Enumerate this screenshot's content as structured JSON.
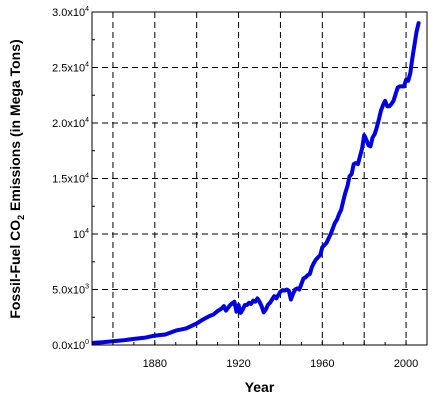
{
  "chart_data": {
    "type": "line",
    "title": "",
    "xlabel": "Year",
    "ylabel": {
      "before": "Fossil-Fuel CO",
      "subscript": "2",
      "after": " Emissions (in Mega Tons)"
    },
    "xlim": [
      1850,
      2010
    ],
    "ylim": [
      0,
      30000
    ],
    "x_ticks": [
      {
        "value": 1880,
        "label": "1880"
      },
      {
        "value": 1920,
        "label": "1920"
      },
      {
        "value": 1960,
        "label": "1960"
      },
      {
        "value": 2000,
        "label": "2000"
      }
    ],
    "y_ticks": [
      {
        "value": 0,
        "mantissa": "0.0x10",
        "exp": "0"
      },
      {
        "value": 5000,
        "mantissa": "5.0x10",
        "exp": "3"
      },
      {
        "value": 10000,
        "mantissa": "10",
        "exp": "4"
      },
      {
        "value": 15000,
        "mantissa": "1.5x10",
        "exp": "4"
      },
      {
        "value": 20000,
        "mantissa": "2.0x10",
        "exp": "4"
      },
      {
        "value": 25000,
        "mantissa": "2.5x10",
        "exp": "4"
      },
      {
        "value": 30000,
        "mantissa": "3.0x10",
        "exp": "4"
      }
    ],
    "grid": true,
    "series": [
      {
        "color": "#0000e6",
        "x": [
          1851,
          1855,
          1860,
          1865,
          1870,
          1875,
          1880,
          1885,
          1890,
          1895,
          1900,
          1903,
          1906,
          1908,
          1910,
          1912,
          1913,
          1914,
          1916,
          1918,
          1919,
          1920,
          1921,
          1922,
          1923,
          1924,
          1925,
          1926,
          1927,
          1928,
          1929,
          1930,
          1931,
          1932,
          1933,
          1934,
          1935,
          1936,
          1937,
          1938,
          1939,
          1940,
          1941,
          1942,
          1943,
          1944,
          1945,
          1946,
          1947,
          1948,
          1949,
          1950,
          1951,
          1952,
          1953,
          1954,
          1955,
          1956,
          1957,
          1958,
          1959,
          1960,
          1961,
          1962,
          1963,
          1964,
          1965,
          1966,
          1967,
          1968,
          1969,
          1970,
          1971,
          1972,
          1973,
          1974,
          1975,
          1976,
          1977,
          1978,
          1979,
          1980,
          1981,
          1982,
          1983,
          1984,
          1985,
          1986,
          1987,
          1988,
          1989,
          1990,
          1991,
          1992,
          1993,
          1994,
          1995,
          1996,
          1997,
          1998,
          1999,
          2000,
          2001,
          2002,
          2003,
          2004,
          2005,
          2006
        ],
        "values": [
          200,
          250,
          330,
          420,
          550,
          650,
          850,
          950,
          1300,
          1500,
          1950,
          2300,
          2600,
          2750,
          3050,
          3300,
          3500,
          3100,
          3600,
          3900,
          3000,
          3600,
          2900,
          3200,
          3600,
          3600,
          3800,
          3700,
          4000,
          3900,
          4200,
          3900,
          3500,
          2950,
          3200,
          3600,
          3800,
          4100,
          4400,
          4200,
          4500,
          4800,
          4950,
          4900,
          5000,
          4900,
          4100,
          4600,
          5000,
          5100,
          5000,
          5500,
          6000,
          6100,
          6300,
          6400,
          7000,
          7400,
          7700,
          7900,
          8100,
          8800,
          9000,
          9200,
          9600,
          10000,
          10500,
          11000,
          11300,
          11800,
          12200,
          13000,
          13700,
          14300,
          15200,
          15400,
          16300,
          16400,
          16300,
          17000,
          17700,
          18900,
          18500,
          18000,
          17900,
          18700,
          19000,
          19600,
          20300,
          21100,
          21600,
          22000,
          21500,
          21500,
          21700,
          22000,
          22600,
          23200,
          23300,
          23300,
          23300,
          23900,
          23800,
          24500,
          25800,
          27000,
          28200,
          29000
        ]
      }
    ]
  }
}
